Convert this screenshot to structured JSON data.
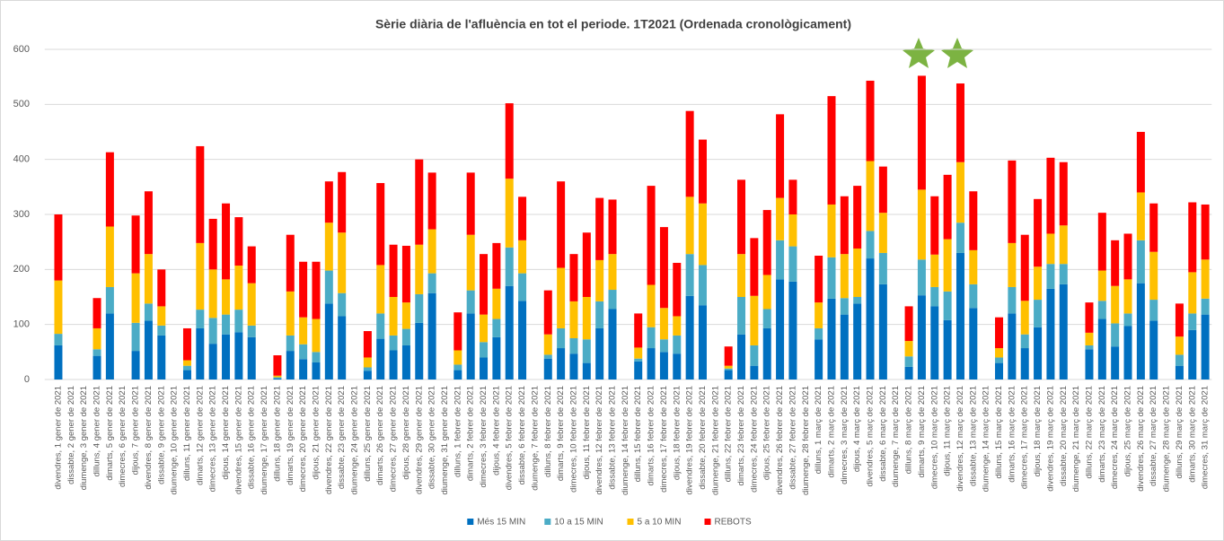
{
  "chart_data": {
    "type": "stacked_bar",
    "title": "Sèrie diària de l'afluència en tot el periode. 1T2021 (Ordenada cronològicament)",
    "categories": [
      "divendres, 1 gener de 2021",
      "dissabte, 2 gener de 2021",
      "diumenge, 3 gener de 2021",
      "dilluns, 4 gener de 2021",
      "dimarts, 5 gener de 2021",
      "dimecres, 6 gener de 2021",
      "dijous, 7 gener de 2021",
      "divendres, 8 gener de 2021",
      "dissabte, 9 gener de 2021",
      "diumenge, 10 gener de 2021",
      "dilluns, 11 gener de 2021",
      "dimarts, 12 gener de 2021",
      "dimecres, 13 gener de 2021",
      "dijous, 14 gener de 2021",
      "divendres, 15 gener de 2021",
      "dissabte, 16 gener de 2021",
      "diumenge, 17 gener de 2021",
      "dilluns, 18 gener de 2021",
      "dimarts, 19 gener de 2021",
      "dimecres, 20 gener de 2021",
      "dijous, 21 gener de 2021",
      "divendres, 22 gener de 2021",
      "dissabte, 23 gener de 2021",
      "diumenge, 24 gener de 2021",
      "dilluns, 25 gener de 2021",
      "dimarts, 26 gener de 2021",
      "dimecres, 27 gener de 2021",
      "dijous, 28 gener de 2021",
      "divendres, 29 gener de 2021",
      "dissabte, 30 gener de 2021",
      "diumenge, 31 gener de 2021",
      "dilluns, 1 febrer de 2021",
      "dimarts, 2 febrer de 2021",
      "dimecres, 3 febrer de 2021",
      "dijous, 4 febrer de 2021",
      "divendres, 5 febrer de 2021",
      "dissabte, 6 febrer de 2021",
      "diumenge, 7 febrer de 2021",
      "dilluns, 8 febrer de 2021",
      "dimarts, 9 febrer de 2021",
      "dimecres, 10 febrer de 2021",
      "dijous, 11 febrer de 2021",
      "divendres, 12 febrer de 2021",
      "dissabte, 13 febrer de 2021",
      "diumenge, 14 febrer de 2021",
      "dilluns, 15 febrer de 2021",
      "dimarts, 16 febrer de 2021",
      "dimecres, 17 febrer de 2021",
      "dijous, 18 febrer de 2021",
      "divendres, 19 febrer de 2021",
      "dissabte, 20 febrer de 2021",
      "diumenge, 21 febrer de 2021",
      "dilluns, 22 febrer de 2021",
      "dimarts, 23 febrer de 2021",
      "dimecres, 24 febrer de 2021",
      "dijous, 25 febrer de 2021",
      "divendres, 26 febrer de 2021",
      "dissabte, 27 febrer de 2021",
      "diumenge, 28 febrer de 2021",
      "dilluns, 1 març de 2021",
      "dimarts, 2 març de 2021",
      "dimecres, 3 març de 2021",
      "dijous, 4 març de 2021",
      "divendres, 5 març de 2021",
      "dissabte, 6 març de 2021",
      "diumenge, 7 març de 2021",
      "dilluns, 8 març de 2021",
      "dimarts, 9 març de 2021",
      "dimecres, 10 març de 2021",
      "dijous, 11 març de 2021",
      "divendres, 12 març de 2021",
      "dissabte, 13 març de 2021",
      "diumenge, 14 març de 2021",
      "dilluns, 15 març de 2021",
      "dimarts, 16 març de 2021",
      "dimecres, 17 març de 2021",
      "dijous, 18 març de 2021",
      "divendres, 19 març de 2021",
      "dissabte, 20 març de 2021",
      "diumenge, 21 març de 2021",
      "dilluns, 22 març de 2021",
      "dimarts, 23 març de 2021",
      "dimecres, 24 març de 2021",
      "dijous, 25 març de 2021",
      "divendres, 26 març de 2021",
      "dissabte, 27 març de 2021",
      "diumenge, 28 març de 2021",
      "dilluns, 29 març de 2021",
      "dimarts, 30 març de 2021",
      "dimecres, 31 març de 2021"
    ],
    "series": [
      {
        "name": "Més 15 MIN",
        "color": "#0070c0",
        "values": [
          62,
          0,
          0,
          43,
          120,
          0,
          52,
          107,
          80,
          0,
          17,
          93,
          65,
          82,
          86,
          77,
          0,
          2,
          52,
          37,
          31,
          138,
          115,
          0,
          16,
          74,
          53,
          62,
          103,
          157,
          0,
          17,
          120,
          40,
          77,
          170,
          143,
          0,
          38,
          57,
          47,
          30,
          93,
          128,
          0,
          33,
          57,
          50,
          47,
          152,
          135,
          0,
          17,
          82,
          25,
          93,
          182,
          178,
          0,
          73,
          147,
          118,
          138,
          220,
          173,
          0,
          23,
          153,
          133,
          108,
          230,
          130,
          0,
          30,
          120,
          57,
          95,
          165,
          173,
          0,
          55,
          110,
          60,
          97,
          175,
          107,
          0,
          25,
          90,
          118
        ]
      },
      {
        "name": "10 a 15 MIN",
        "color": "#4bacc6",
        "values": [
          21,
          0,
          0,
          12,
          48,
          0,
          51,
          31,
          18,
          0,
          8,
          34,
          47,
          36,
          41,
          21,
          0,
          2,
          28,
          27,
          19,
          60,
          42,
          0,
          6,
          46,
          27,
          30,
          52,
          36,
          0,
          10,
          42,
          28,
          33,
          70,
          50,
          0,
          7,
          36,
          28,
          43,
          49,
          35,
          0,
          5,
          38,
          23,
          33,
          76,
          73,
          0,
          3,
          68,
          37,
          35,
          71,
          64,
          0,
          20,
          75,
          30,
          12,
          50,
          57,
          0,
          19,
          65,
          35,
          52,
          55,
          43,
          0,
          10,
          48,
          25,
          50,
          45,
          37,
          0,
          7,
          33,
          42,
          23,
          78,
          38,
          0,
          20,
          30,
          29
        ]
      },
      {
        "name": "5 a 10 MIN",
        "color": "#ffc000",
        "values": [
          97,
          0,
          0,
          38,
          110,
          0,
          90,
          90,
          35,
          0,
          10,
          121,
          88,
          64,
          80,
          77,
          0,
          3,
          80,
          49,
          60,
          87,
          110,
          0,
          18,
          88,
          70,
          48,
          90,
          80,
          0,
          26,
          101,
          50,
          55,
          125,
          60,
          0,
          37,
          110,
          67,
          77,
          75,
          65,
          0,
          20,
          77,
          57,
          35,
          104,
          112,
          0,
          5,
          78,
          90,
          62,
          77,
          58,
          0,
          47,
          96,
          80,
          88,
          127,
          73,
          0,
          28,
          127,
          59,
          95,
          110,
          62,
          0,
          17,
          80,
          61,
          60,
          55,
          70,
          0,
          23,
          55,
          68,
          62,
          87,
          87,
          0,
          33,
          75,
          71
        ]
      },
      {
        "name": "REBOTS",
        "color": "#ff0000",
        "values": [
          120,
          0,
          0,
          55,
          135,
          0,
          105,
          114,
          67,
          0,
          58,
          176,
          92,
          138,
          88,
          67,
          0,
          37,
          103,
          101,
          104,
          75,
          110,
          0,
          48,
          149,
          95,
          103,
          155,
          103,
          0,
          69,
          113,
          110,
          83,
          137,
          79,
          0,
          80,
          157,
          86,
          117,
          113,
          99,
          0,
          62,
          180,
          147,
          97,
          156,
          116,
          0,
          35,
          135,
          105,
          118,
          152,
          63,
          0,
          85,
          197,
          105,
          114,
          146,
          84,
          0,
          63,
          207,
          106,
          117,
          143,
          107,
          0,
          56,
          150,
          120,
          123,
          138,
          115,
          0,
          55,
          105,
          83,
          83,
          110,
          88,
          0,
          60,
          127,
          100
        ]
      }
    ],
    "ylim": [
      0,
      600
    ],
    "yticks": [
      0,
      100,
      200,
      300,
      400,
      500,
      600
    ],
    "grid": true,
    "legend": "bottom"
  }
}
